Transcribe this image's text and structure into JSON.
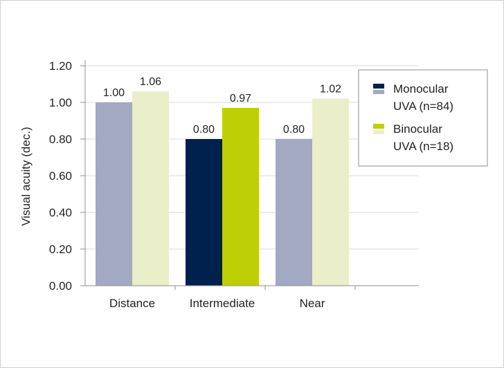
{
  "chart_data": {
    "type": "bar",
    "title": "",
    "xlabel": "",
    "ylabel": "Visual acuity (dec.)",
    "ylim": [
      0,
      1.2
    ],
    "yticks": [
      "0.00",
      "0.20",
      "0.40",
      "0.60",
      "0.80",
      "1.00",
      "1.20"
    ],
    "categories": [
      "Distance",
      "Intermediate",
      "Near"
    ],
    "series": [
      {
        "name": "Monocular UVA (n=84)",
        "legend_lines": [
          "Monocular",
          "UVA (n=84)"
        ],
        "values": [
          1.0,
          0.8,
          0.8
        ],
        "labels": [
          "1.00",
          "0.80",
          "0.80"
        ],
        "colors": [
          "#a3a8c3",
          "#00204e",
          "#a3a8c3"
        ],
        "legend_colors": [
          "#00204e",
          "#a3a8c3"
        ]
      },
      {
        "name": "Binocular UVA (n=18)",
        "legend_lines": [
          "Binocular",
          "UVA (n=18)"
        ],
        "values": [
          1.06,
          0.97,
          1.02
        ],
        "labels": [
          "1.06",
          "0.97",
          "1.02"
        ],
        "colors": [
          "#eaeec9",
          "#bfcf06",
          "#eaeec9"
        ],
        "legend_colors": [
          "#bfcf06",
          "#eaeec9"
        ]
      }
    ],
    "grid": true,
    "legend_position": "right"
  }
}
